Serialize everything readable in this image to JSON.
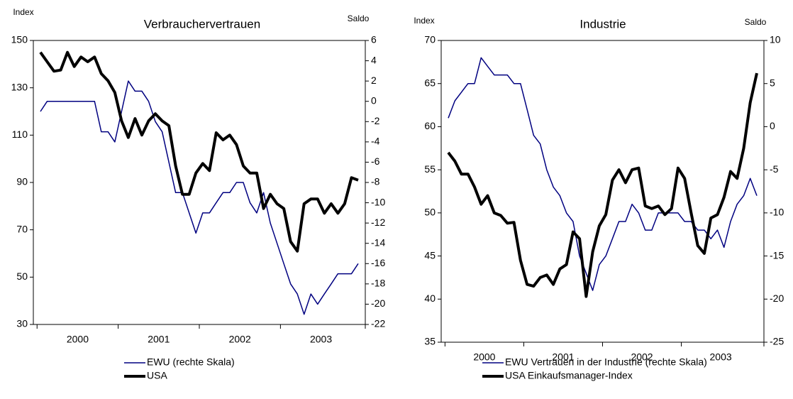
{
  "chart_data": [
    {
      "type": "line",
      "title": "Verbrauchervertrauen",
      "y_label": "Index",
      "y2_label": "Saldo",
      "categories": [
        null,
        null,
        null,
        null,
        null,
        null,
        "2000",
        null,
        null,
        null,
        null,
        null,
        null,
        null,
        null,
        null,
        null,
        null,
        "2001",
        null,
        null,
        null,
        null,
        null,
        null,
        null,
        null,
        null,
        null,
        null,
        "2002",
        null,
        null,
        null,
        null,
        null,
        null,
        null,
        null,
        null,
        null,
        null,
        "2003",
        null,
        null,
        null,
        null,
        null
      ],
      "ylim": [
        30,
        150
      ],
      "yticks": [
        30,
        50,
        70,
        90,
        110,
        130,
        150
      ],
      "y2lim": [
        -22,
        6
      ],
      "y2ticks": [
        -22,
        -20,
        -18,
        -16,
        -14,
        -12,
        -10,
        -8,
        -6,
        -4,
        -2,
        0,
        2,
        4,
        6
      ],
      "series": [
        {
          "name": "EWU (rechte Skala)",
          "color": "#000080",
          "axis": "y2",
          "values": [
            -1,
            0,
            0,
            0,
            0,
            0,
            0,
            0,
            0,
            -3,
            -3,
            -4,
            -1,
            2,
            1,
            1,
            0,
            -2,
            -3,
            -6,
            -9,
            -9,
            -11,
            -13,
            -11,
            -11,
            -10,
            -9,
            -9,
            -8,
            -8,
            -10,
            -11,
            -9,
            -12,
            -14,
            -16,
            -18,
            -19,
            -21,
            -19,
            -20,
            -19,
            -18,
            -17,
            -17,
            -17,
            -16
          ]
        },
        {
          "name": "USA",
          "color": "#000000",
          "values": [
            145,
            141,
            137,
            137.5,
            145,
            139,
            143,
            141,
            143,
            136,
            133,
            128,
            116,
            109,
            117,
            110,
            116,
            119,
            116,
            114,
            97,
            85,
            85,
            94,
            98,
            95,
            111,
            108,
            110,
            106,
            97,
            94,
            94,
            79,
            85,
            81,
            79,
            65,
            61,
            81,
            83,
            83,
            77,
            81,
            77,
            81,
            92,
            91
          ]
        }
      ]
    },
    {
      "type": "line",
      "title": "Industrie",
      "y_label": "Index",
      "y2_label": "Saldo",
      "categories": [
        null,
        null,
        null,
        null,
        null,
        null,
        "2000",
        null,
        null,
        null,
        null,
        null,
        null,
        null,
        null,
        null,
        null,
        null,
        "2001",
        null,
        null,
        null,
        null,
        null,
        null,
        null,
        null,
        null,
        null,
        null,
        "2002",
        null,
        null,
        null,
        null,
        null,
        null,
        null,
        null,
        null,
        null,
        null,
        "2003",
        null,
        null,
        null,
        null,
        null
      ],
      "ylim": [
        35,
        70
      ],
      "yticks": [
        35,
        40,
        45,
        50,
        55,
        60,
        65,
        70
      ],
      "y2lim": [
        -25,
        10
      ],
      "y2ticks": [
        -25,
        -20,
        -15,
        -10,
        -5,
        0,
        5,
        10
      ],
      "series": [
        {
          "name": "EWU Vertrauen in der Industrie (rechte Skala)",
          "color": "#000080",
          "axis": "y2",
          "values": [
            1,
            3,
            4,
            5,
            5,
            8,
            7,
            6,
            6,
            6,
            5,
            5,
            2,
            -1,
            -2,
            -5,
            -7,
            -8,
            -10,
            -11,
            -15,
            -17,
            -19,
            -16,
            -15,
            -13,
            -11,
            -11,
            -9,
            -10,
            -12,
            -12,
            -10,
            -10,
            -10,
            -10,
            -11,
            -11,
            -12,
            -12,
            -13,
            -12,
            -14,
            -11,
            -9,
            -8,
            -6,
            -8
          ]
        },
        {
          "name": "USA Einkaufsmanager-Index",
          "color": "#000000",
          "values": [
            57,
            56,
            54.5,
            54.5,
            53,
            51,
            52,
            50,
            49.7,
            48.8,
            48.9,
            44.5,
            41.7,
            41.5,
            42.5,
            42.8,
            41.7,
            43.5,
            44,
            47.8,
            47,
            40.3,
            45.5,
            48.5,
            49.8,
            53.8,
            55,
            53.5,
            55,
            55.2,
            50.8,
            50.5,
            50.8,
            49.8,
            50.5,
            55.2,
            54,
            50,
            46.2,
            45.3,
            49.4,
            49.8,
            51.8,
            54.8,
            54,
            57.5,
            62.8,
            66.2
          ]
        }
      ]
    }
  ]
}
